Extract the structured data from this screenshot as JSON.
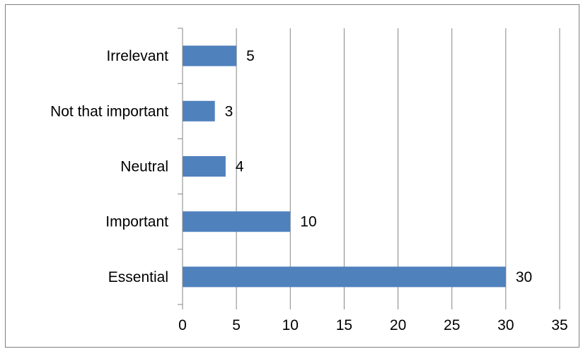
{
  "chart_data": {
    "type": "bar",
    "orientation": "horizontal",
    "categories": [
      "Irrelevant",
      "Not that important",
      "Neutral",
      "Important",
      "Essential"
    ],
    "values": [
      5,
      3,
      4,
      10,
      30
    ],
    "data_labels": [
      "5",
      "3",
      "4",
      "10",
      "30"
    ],
    "x_ticks": [
      "0",
      "5",
      "10",
      "15",
      "20",
      "25",
      "30",
      "35"
    ],
    "xlim": [
      0,
      35
    ],
    "title": "",
    "xlabel": "",
    "ylabel": "",
    "grid": "vertical",
    "legend": "none",
    "colors": {
      "bar": "#4f81bd",
      "grid": "#868686",
      "axis": "#868686",
      "border": "#7f7f7f"
    }
  }
}
